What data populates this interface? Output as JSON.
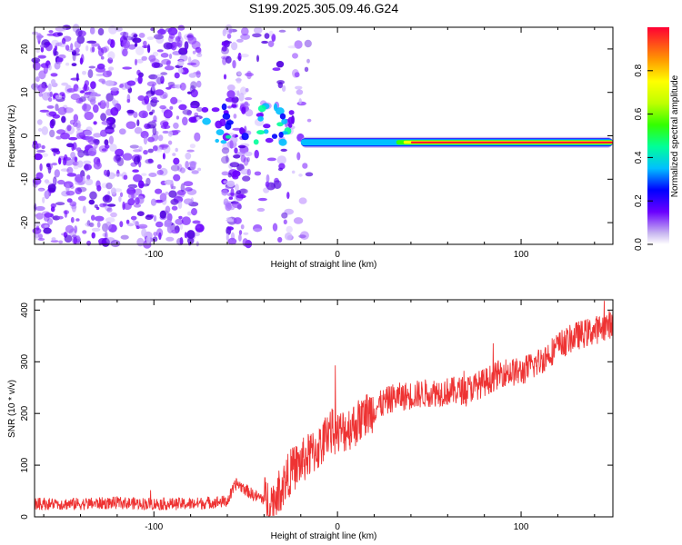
{
  "title": "S199.2025.305.09.46.G24",
  "chart_data": [
    {
      "type": "heatmap",
      "name": "spectrogram",
      "xlabel": "Height of straight line (km)",
      "ylabel": "Frequency (Hz)",
      "xlim": [
        -165,
        150
      ],
      "ylim": [
        -25,
        25
      ],
      "xticks": [
        -100,
        0,
        100
      ],
      "xtick_labels": [
        "-100",
        "0",
        "100"
      ],
      "yticks": [
        -20,
        -10,
        0,
        10,
        20
      ],
      "ytick_labels": [
        "-20",
        "-10",
        "0",
        "10",
        "20"
      ],
      "colorbar": {
        "label": "Normalized spectral amplitude",
        "range": [
          0,
          1
        ],
        "ticks": [
          0.0,
          0.2,
          0.4,
          0.6,
          0.8
        ],
        "tick_labels": [
          "0.0",
          "0.2",
          "0.4",
          "0.6",
          "0.8"
        ]
      },
      "ridge_frequency_hz": -1.5,
      "ridge_onset_km": -20
    },
    {
      "type": "line",
      "name": "snr",
      "xlabel": "Height of straight line (km)",
      "ylabel": "SNR (10 * v/v)",
      "xlim": [
        -165,
        150
      ],
      "ylim": [
        0,
        420
      ],
      "xticks": [
        -100,
        0,
        100
      ],
      "xtick_labels": [
        "-100",
        "0",
        "100"
      ],
      "yticks": [
        0,
        100,
        200,
        300,
        400
      ],
      "ytick_labels": [
        "0",
        "100",
        "200",
        "300",
        "400"
      ],
      "color": "#ee3333",
      "series": [
        {
          "name": "SNR",
          "x": [
            -165,
            -140,
            -120,
            -100,
            -80,
            -60,
            -55,
            -45,
            -35,
            -25,
            -15,
            -8,
            -5,
            0,
            10,
            20,
            30,
            50,
            70,
            80,
            90,
            100,
            110,
            120,
            130,
            140,
            150
          ],
          "values": [
            25,
            25,
            27,
            25,
            25,
            30,
            65,
            40,
            30,
            90,
            120,
            140,
            170,
            160,
            180,
            210,
            230,
            240,
            245,
            260,
            280,
            280,
            300,
            330,
            350,
            360,
            375
          ]
        }
      ]
    }
  ]
}
